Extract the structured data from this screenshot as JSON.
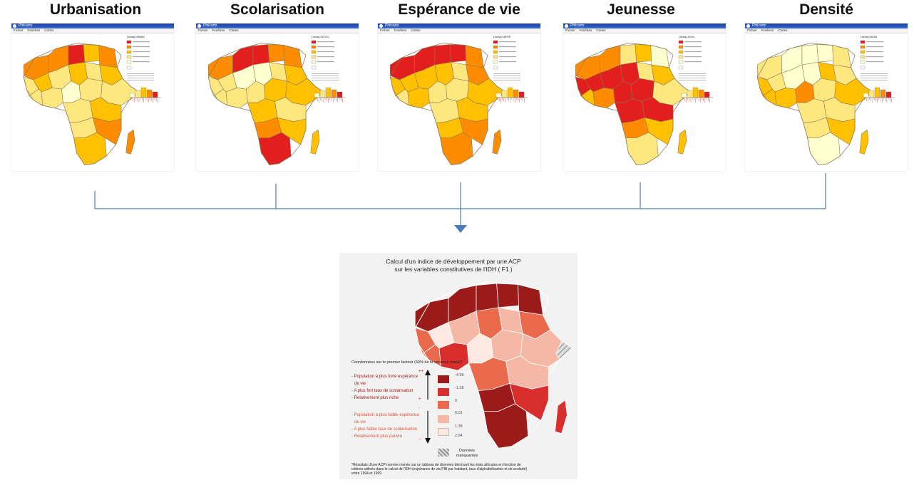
{
  "colors": {
    "connector": "#4a7ab8",
    "map_scale": [
      "#ffffd0",
      "#ffe780",
      "#ffc000",
      "#ff8c00",
      "#e21e1e"
    ],
    "acp_scale": [
      "#9b1b1b",
      "#d92e2e",
      "#ea6a4e",
      "#f6b8a6",
      "#fde8e2"
    ]
  },
  "panels": [
    {
      "title": "Urbanisation",
      "window_title": "Philcarto",
      "menu": [
        "Fichier",
        "Fenêtres",
        "Cartes"
      ],
      "legend_heading": "[Jonha] URBAN"
    },
    {
      "title": "Scolarisation",
      "window_title": "Philcarto",
      "menu": [
        "Fichier",
        "Fenêtres",
        "Cartes"
      ],
      "legend_heading": "[Jonha] SCOOL"
    },
    {
      "title": "Espérance de vie",
      "window_title": "Philcarto",
      "menu": [
        "Fichier",
        "Fenêtres",
        "Cartes"
      ],
      "legend_heading": "[Jonha] ESPER"
    },
    {
      "title": "Jeunesse",
      "window_title": "Philcarto",
      "menu": [
        "Fichier",
        "Fenêtres",
        "Cartes"
      ],
      "legend_heading": "[Jonha] JEUN"
    },
    {
      "title": "Densité",
      "window_title": "Philcarto",
      "menu": [
        "Fichier",
        "Fenêtres",
        "Cartes"
      ],
      "legend_heading": "[Jonha] DENSI"
    }
  ],
  "acp": {
    "title_line1": "Calcul d'un indice de développement  par une ACP",
    "title_line2": "sur les variables constitutives de l'IDH ( F1 )",
    "legend_header": "Coordonnées sur le premier facteur (60% de la variance totale)*",
    "high_lines": [
      "- Population à plus forte espérance",
      "  de vie",
      "- A plus fort taux de scolarisation",
      "- Relativement plus riche"
    ],
    "low_lines": [
      "- Population à plus faible  espérance",
      "  de vie",
      "- A plus faible taux de scolarisation",
      "- Relativement plus pauvre"
    ],
    "signs": [
      "++",
      "+",
      "-",
      "--"
    ],
    "class_values": [
      "-4.96",
      "-1.38",
      "0",
      "0.01",
      "1.38",
      "2.84"
    ],
    "missing_label": "Données manquantes",
    "footnote": "*Résultats d'une ACP normée menée sur un tableau de données décrivant les états africains en fonction de critères utilisés dans le calcul de l'IDH (espérance de vie,PIB par habitant, taux d'alphabétisation et de scolarté) entre 1994 et 1999"
  }
}
